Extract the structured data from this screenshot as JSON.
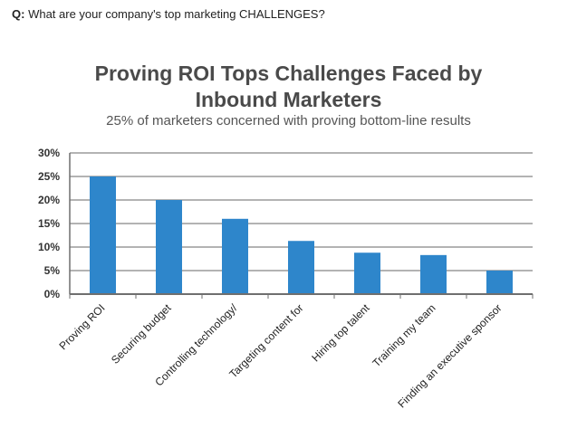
{
  "question": {
    "prefix": "Q:",
    "text": " What are your company's top marketing CHALLENGES?"
  },
  "colors": {
    "bar": "#2e86cb",
    "grid": "#9a9a9a",
    "axis": "#6f6f6f"
  },
  "chart_data": {
    "type": "bar",
    "title_line1": "Proving ROI Tops Challenges Faced by",
    "title_line2": "Inbound Marketers",
    "subtitle": "25% of marketers concerned with proving bottom-line results",
    "categories": [
      "Proving ROI",
      "Securing budget",
      "Controlling  technology/",
      "Targeting content for",
      "Hiring top talent",
      "Training my team",
      "Finding an executive sponsor"
    ],
    "values": [
      25,
      20,
      16,
      11.3,
      8.8,
      8.3,
      5
    ],
    "ylim": [
      0,
      30
    ],
    "yticks": [
      "0%",
      "5%",
      "10%",
      "15%",
      "20%",
      "25%",
      "30%"
    ],
    "grid": true,
    "xlabel": "",
    "ylabel": ""
  }
}
